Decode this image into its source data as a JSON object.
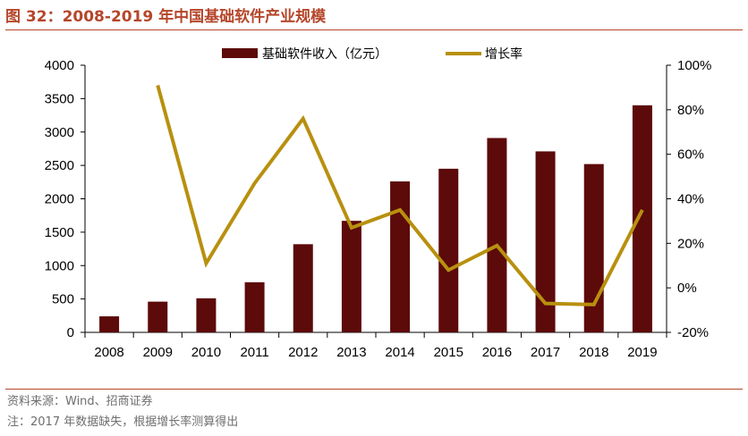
{
  "header": {
    "title": "图 32：2008-2019 年中国基础软件产业规模"
  },
  "footer": {
    "source": "资料来源：Wind、招商证券",
    "note": "注：2017 年数据缺失，根据增长率测算得出"
  },
  "colors": {
    "bar": "#5c0a0a",
    "line": "#b8900f",
    "accent": "#b5462a"
  },
  "chart_data": {
    "type": "bar",
    "title": "2008-2019 年中国基础软件产业规模",
    "categories": [
      "2008",
      "2009",
      "2010",
      "2011",
      "2012",
      "2013",
      "2014",
      "2015",
      "2016",
      "2017",
      "2018",
      "2019"
    ],
    "series": [
      {
        "name": "基础软件收入（亿元）",
        "type": "bar",
        "axis": "left",
        "values": [
          240,
          460,
          510,
          750,
          1320,
          1670,
          2260,
          2450,
          2910,
          2710,
          2520,
          3400
        ]
      },
      {
        "name": "增长率",
        "type": "line",
        "axis": "right",
        "values": [
          null,
          91,
          11,
          47,
          76,
          27,
          35,
          8,
          19,
          -7,
          -7.5,
          35
        ]
      }
    ],
    "y_left": {
      "min": 0,
      "max": 4000,
      "ticks": [
        0,
        500,
        1000,
        1500,
        2000,
        2500,
        3000,
        3500,
        4000
      ]
    },
    "y_right": {
      "min": -20,
      "max": 100,
      "ticks": [
        -20,
        0,
        20,
        40,
        60,
        80,
        100
      ],
      "tick_labels": [
        "-20%",
        "0%",
        "20%",
        "40%",
        "60%",
        "80%",
        "100%"
      ]
    },
    "legend_position": "top-center"
  }
}
